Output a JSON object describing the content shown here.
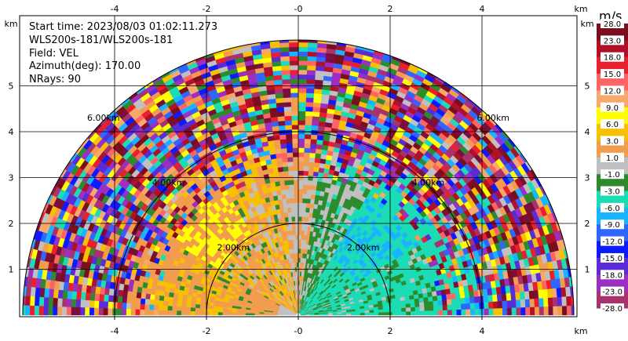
{
  "info": {
    "start_time": "Start time: 2023/08/03 01:02:11.273",
    "instrument": "WLS200s-181/WLS200s-181",
    "field": "Field: VEL",
    "azimuth": "Azimuth(deg): 170.00",
    "nrays": "NRays: 90"
  },
  "chart_data": {
    "type": "heatmap",
    "projection": "RHI half-disk (range-height)",
    "x_unit": "km",
    "y_unit": "km",
    "xlim": [
      -6.0,
      6.0
    ],
    "ylim": [
      0,
      6.0
    ],
    "x_ticks": [
      -4,
      -2,
      0,
      2,
      4
    ],
    "x_tick_labels": [
      "-4",
      "-2",
      "-0",
      "2",
      "4"
    ],
    "y_ticks": [
      1,
      2,
      3,
      4,
      5
    ],
    "y_tick_labels": [
      "1",
      "2",
      "3",
      "4",
      "5"
    ],
    "grid": true,
    "range_rings_km": [
      2,
      4,
      6
    ],
    "range_ring_labels": [
      "2.00km",
      "4.00km",
      "6.00km"
    ],
    "max_range_km": 6.0,
    "colorbar": {
      "unit": "m/s",
      "labels": [
        "-28.0",
        "-23.0",
        "-18.0",
        "-15.0",
        "-12.0",
        "-9.0",
        "-6.0",
        "-3.0",
        "-1.0",
        "1.0",
        "3.0",
        "6.0",
        "9.0",
        "12.0",
        "15.0",
        "18.0",
        "23.0",
        "28.0"
      ],
      "colors": [
        "#7a0f3e",
        "#a8326e",
        "#9c2fc2",
        "#5a2bd6",
        "#0c1aff",
        "#2f66ff",
        "#19b4ff",
        "#1bdcb4",
        "#2d8a2d",
        "#c0c0c0",
        "#f29c4d",
        "#f7c000",
        "#ffff00",
        "#f8a86a",
        "#ff6464",
        "#e8202e",
        "#b01028",
        "#7a0e1c"
      ],
      "position": "right"
    },
    "field_description": [
      {
        "sector": "left, 0-30 deg elevation",
        "dominant_values": [
          "6.0",
          "9.0",
          "3.0"
        ]
      },
      {
        "sector": "near vertical",
        "dominant_values": [
          "-1.0",
          "1.0",
          "3.0"
        ]
      },
      {
        "sector": "right, 0-30 deg elevation",
        "dominant_values": [
          "-6.0",
          "-9.0",
          "-3.0"
        ]
      },
      {
        "sector": "beyond 4 km",
        "dominant_values": [
          "noise"
        ]
      }
    ]
  }
}
